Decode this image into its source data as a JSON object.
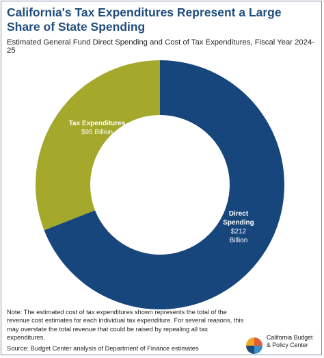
{
  "chart_data": {
    "type": "pie",
    "title": "California's Tax Expenditures Represent a Large Share of State Spending",
    "subtitle": "Estimated General Fund Direct Spending and Cost of Tax Expenditures, Fiscal Year 2024-25",
    "categories": [
      "Direct Spending",
      "Tax Expenditures"
    ],
    "values": [
      212,
      95
    ],
    "value_labels": [
      "$212 Billion",
      "$95 Billion"
    ],
    "colors": [
      "#17467c",
      "#a4a82b"
    ]
  },
  "note": "Note: The estimated cost of tax expenditures shown represents the total of the revenue cost estimates for each individual tax expenditure. For several reasons, this may overstate the total revenue that could be raised by repealing all tax expenditures.",
  "source": "Source: Budget Center analysis of Department of Finance estimates",
  "logo": {
    "line1": "California Budget",
    "line2": "& Policy Center"
  }
}
